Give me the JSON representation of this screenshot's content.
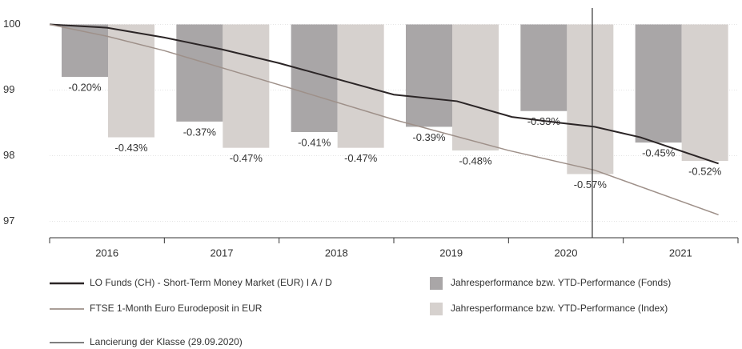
{
  "chart_data": {
    "type": "bar",
    "categories": [
      "2016",
      "2017",
      "2018",
      "2019",
      "2020",
      "2021"
    ],
    "xlim": [
      2016,
      2022
    ],
    "ylim": [
      96.75,
      100.25
    ],
    "yticks": [
      97,
      98,
      99,
      100
    ],
    "y2lim": [
      -0.8125,
      0.0625
    ],
    "series": [
      {
        "name": "Jahresperformance bzw. YTD-Performance (Fonds)",
        "type": "bar",
        "axis": "y2",
        "color": "#a9a6a7",
        "values": [
          -0.2,
          -0.37,
          -0.41,
          -0.39,
          -0.33,
          -0.45
        ],
        "value_labels": [
          "-0.20%",
          "-0.37%",
          "-0.41%",
          "-0.39%",
          "-0.33%",
          "-0.45%"
        ]
      },
      {
        "name": "Jahresperformance bzw. YTD-Performance (Index)",
        "type": "bar",
        "axis": "y2",
        "color": "#d6d1ce",
        "values": [
          -0.43,
          -0.47,
          -0.47,
          -0.48,
          -0.57,
          -0.52
        ],
        "value_labels": [
          "-0.43%",
          "-0.47%",
          "-0.47%",
          "-0.48%",
          "-0.57%",
          "-0.52%"
        ]
      },
      {
        "name": "LO Funds (CH) - Short-Term Money Market (EUR) I A / D",
        "type": "line",
        "color": "#2b2526",
        "x": [
          2016.0,
          2016.5,
          2017.0,
          2017.5,
          2018.0,
          2018.5,
          2019.0,
          2019.55,
          2020.03,
          2020.45,
          2020.75,
          2021.15,
          2021.83
        ],
        "values": [
          100.0,
          99.95,
          99.8,
          99.62,
          99.41,
          99.17,
          98.93,
          98.83,
          98.59,
          98.5,
          98.44,
          98.28,
          97.88
        ]
      },
      {
        "name": "FTSE 1-Month Euro Eurodeposit in EUR",
        "type": "line",
        "color": "#9e9089",
        "x": [
          2016.0,
          2016.5,
          2017.0,
          2018.0,
          2019.0,
          2020.0,
          2020.75,
          2021.83
        ],
        "values": [
          100.0,
          99.82,
          99.6,
          99.08,
          98.55,
          98.08,
          97.78,
          97.1
        ]
      }
    ],
    "launch": {
      "name": "Lancierung der Klasse (29.09.2020)",
      "x": 2020.73,
      "color": "#333333"
    }
  }
}
